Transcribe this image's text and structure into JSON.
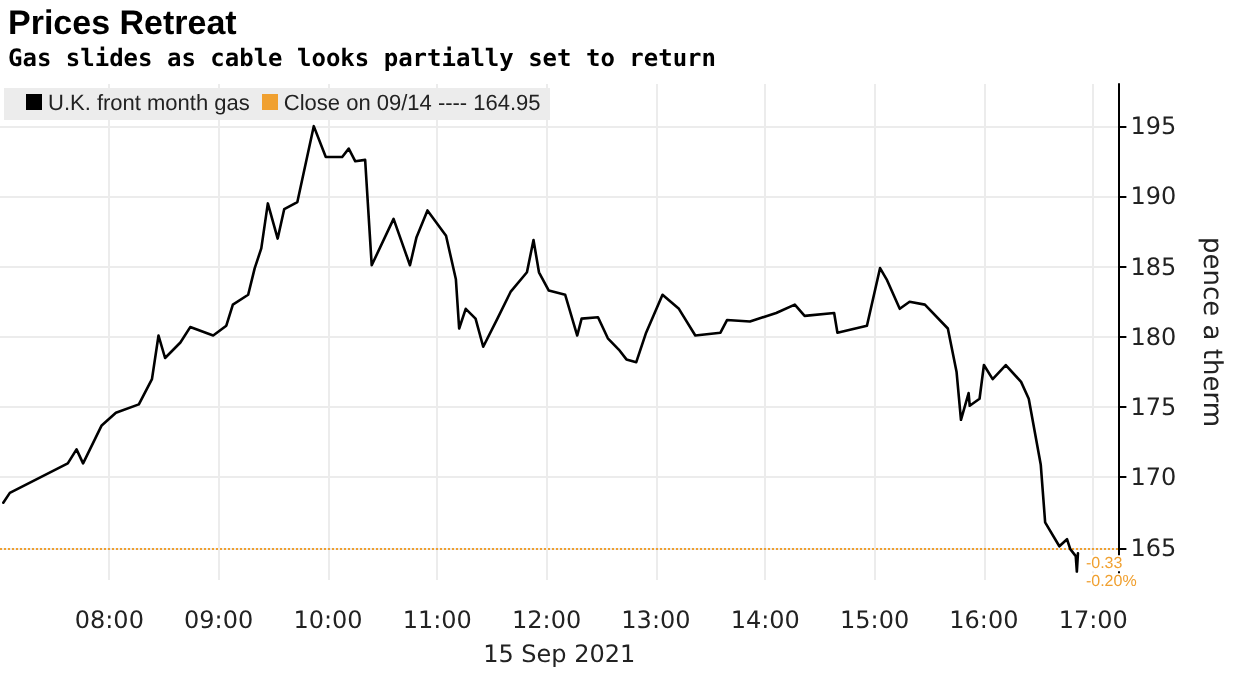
{
  "chart_data": {
    "type": "line",
    "title": "Prices Retreat",
    "subtitle": "Gas slides as cable looks partially set to return",
    "xlabel": "15 Sep 2021",
    "ylabel": "pence a therm",
    "legend": "top left",
    "grid": true,
    "marker": "none",
    "line_style": "solid",
    "xlim": [
      7,
      17.23
    ],
    "ylim": [
      162.7,
      198
    ],
    "xticks": [
      {
        "value": 8,
        "label": "08:00"
      },
      {
        "value": 9,
        "label": "09:00"
      },
      {
        "value": 10,
        "label": "10:00"
      },
      {
        "value": 11,
        "label": "11:00"
      },
      {
        "value": 12,
        "label": "12:00"
      },
      {
        "value": 13,
        "label": "13:00"
      },
      {
        "value": 14,
        "label": "14:00"
      },
      {
        "value": 15,
        "label": "15:00"
      },
      {
        "value": 16,
        "label": "16:00"
      },
      {
        "value": 17,
        "label": "17:00"
      }
    ],
    "yticks": [
      165,
      170,
      175,
      180,
      185,
      190,
      195
    ],
    "series": [
      {
        "name": "U.K. front month gas",
        "color": "#000000",
        "x": [
          7.03,
          7.09,
          7.62,
          7.7,
          7.76,
          7.93,
          8.06,
          8.27,
          8.39,
          8.45,
          8.51,
          8.65,
          8.74,
          8.95,
          9.07,
          9.13,
          9.27,
          9.33,
          9.39,
          9.45,
          9.54,
          9.6,
          9.72,
          9.87,
          9.98,
          10.13,
          10.19,
          10.25,
          10.34,
          10.4,
          10.6,
          10.75,
          10.81,
          10.91,
          11.08,
          11.17,
          11.2,
          11.26,
          11.35,
          11.42,
          11.55,
          11.67,
          11.82,
          11.88,
          11.93,
          12.02,
          12.17,
          12.28,
          12.32,
          12.47,
          12.56,
          12.66,
          12.73,
          12.82,
          12.91,
          13.06,
          13.21,
          13.36,
          13.59,
          13.65,
          13.86,
          14.1,
          14.27,
          14.36,
          14.63,
          14.66,
          14.93,
          15.05,
          15.11,
          15.23,
          15.32,
          15.46,
          15.67,
          15.75,
          15.79,
          15.86,
          15.87,
          15.96,
          16.0,
          16.08,
          16.2,
          16.34,
          16.41,
          16.52,
          16.56,
          16.69,
          16.76,
          16.79,
          16.84,
          16.85,
          16.86
        ],
        "values": [
          168.2,
          168.9,
          171.0,
          172.0,
          171.0,
          173.7,
          174.6,
          175.2,
          177.0,
          180.1,
          178.5,
          179.6,
          180.7,
          180.1,
          180.8,
          182.3,
          183.0,
          184.9,
          186.3,
          189.5,
          187.0,
          189.1,
          189.6,
          195.0,
          192.8,
          192.8,
          193.4,
          192.5,
          192.6,
          185.1,
          188.4,
          185.1,
          187.1,
          189.0,
          187.2,
          184.1,
          180.6,
          182.0,
          181.3,
          179.3,
          181.3,
          183.2,
          184.6,
          186.9,
          184.6,
          183.3,
          183.0,
          180.1,
          181.3,
          181.4,
          179.9,
          179.1,
          178.4,
          178.2,
          180.3,
          183.0,
          182.0,
          180.1,
          180.3,
          181.2,
          181.1,
          181.7,
          182.3,
          181.5,
          181.7,
          180.3,
          180.8,
          184.9,
          184.1,
          182.0,
          182.5,
          182.3,
          180.6,
          177.5,
          174.1,
          176.0,
          175.1,
          175.6,
          178.0,
          177.0,
          178.0,
          176.8,
          175.6,
          170.9,
          166.8,
          165.1,
          165.6,
          164.9,
          164.4,
          163.3,
          164.6
        ]
      }
    ],
    "ref_lines": [
      {
        "axis": "y",
        "value": 164.95,
        "label": "Close on 09/14 ---- 164.95",
        "color": "#f0a030",
        "line_style": "dotted"
      }
    ],
    "annotations": [
      {
        "text": "-0.33",
        "x": 16.86,
        "y": 164.6
      },
      {
        "text": "-0.20%",
        "x": 16.86,
        "y": 164.6
      }
    ]
  }
}
